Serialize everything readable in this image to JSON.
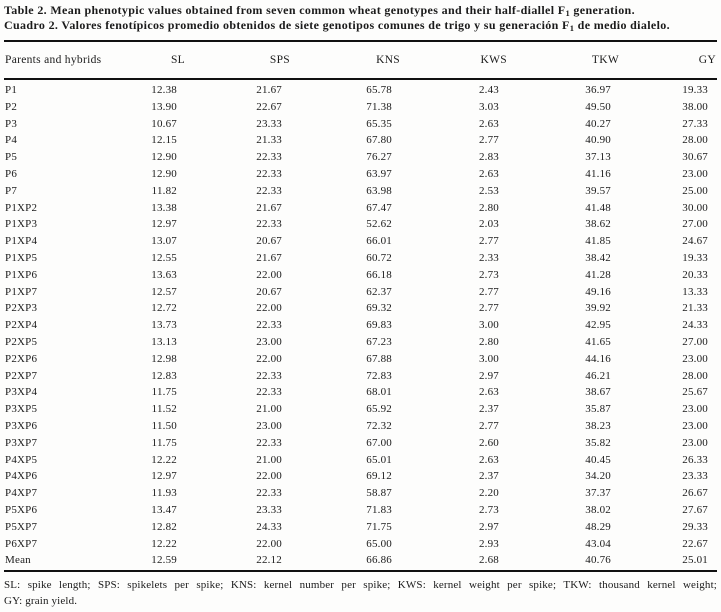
{
  "caption": {
    "en": {
      "pre": "Table 2. Mean phenotypic values obtained from seven common wheat genotypes and their half-diallel F",
      "sub": "1",
      "post": " generation."
    },
    "es": {
      "pre": "Cuadro 2. Valores fenotípicos promedio obtenidos de siete genotipos comunes de trigo y su generación F",
      "sub": "1",
      "post": " de medio dialelo."
    }
  },
  "table": {
    "headers": [
      "Parents and hybrids",
      "SL",
      "SPS",
      "KNS",
      "KWS",
      "TKW",
      "GY"
    ],
    "rows": [
      [
        "P1",
        "12.38",
        "21.67",
        "65.78",
        "2.43",
        "36.97",
        "19.33"
      ],
      [
        "P2",
        "13.90",
        "22.67",
        "71.38",
        "3.03",
        "49.50",
        "38.00"
      ],
      [
        "P3",
        "10.67",
        "23.33",
        "65.35",
        "2.63",
        "40.27",
        "27.33"
      ],
      [
        "P4",
        "12.15",
        "21.33",
        "67.80",
        "2.77",
        "40.90",
        "28.00"
      ],
      [
        "P5",
        "12.90",
        "22.33",
        "76.27",
        "2.83",
        "37.13",
        "30.67"
      ],
      [
        "P6",
        "12.90",
        "22.33",
        "63.97",
        "2.63",
        "41.16",
        "23.00"
      ],
      [
        "P7",
        "11.82",
        "22.33",
        "63.98",
        "2.53",
        "39.57",
        "25.00"
      ],
      [
        "P1XP2",
        "13.38",
        "21.67",
        "67.47",
        "2.80",
        "41.48",
        "30.00"
      ],
      [
        "P1XP3",
        "12.97",
        "22.33",
        "52.62",
        "2.03",
        "38.62",
        "27.00"
      ],
      [
        "P1XP4",
        "13.07",
        "20.67",
        "66.01",
        "2.77",
        "41.85",
        "24.67"
      ],
      [
        "P1XP5",
        "12.55",
        "21.67",
        "60.72",
        "2.33",
        "38.42",
        "19.33"
      ],
      [
        "P1XP6",
        "13.63",
        "22.00",
        "66.18",
        "2.73",
        "41.28",
        "20.33"
      ],
      [
        "P1XP7",
        "12.57",
        "20.67",
        "62.37",
        "2.77",
        "49.16",
        "13.33"
      ],
      [
        "P2XP3",
        "12.72",
        "22.00",
        "69.32",
        "2.77",
        "39.92",
        "21.33"
      ],
      [
        "P2XP4",
        "13.73",
        "22.33",
        "69.83",
        "3.00",
        "42.95",
        "24.33"
      ],
      [
        "P2XP5",
        "13.13",
        "23.00",
        "67.23",
        "2.80",
        "41.65",
        "27.00"
      ],
      [
        "P2XP6",
        "12.98",
        "22.00",
        "67.88",
        "3.00",
        "44.16",
        "23.00"
      ],
      [
        "P2XP7",
        "12.83",
        "22.33",
        "72.83",
        "2.97",
        "46.21",
        "28.00"
      ],
      [
        "P3XP4",
        "11.75",
        "22.33",
        "68.01",
        "2.63",
        "38.67",
        "25.67"
      ],
      [
        "P3XP5",
        "11.52",
        "21.00",
        "65.92",
        "2.37",
        "35.87",
        "23.00"
      ],
      [
        "P3XP6",
        "11.50",
        "23.00",
        "72.32",
        "2.77",
        "38.23",
        "23.00"
      ],
      [
        "P3XP7",
        "11.75",
        "22.33",
        "67.00",
        "2.60",
        "35.82",
        "23.00"
      ],
      [
        "P4XP5",
        "12.22",
        "21.00",
        "65.01",
        "2.63",
        "40.45",
        "26.33"
      ],
      [
        "P4XP6",
        "12.97",
        "22.00",
        "69.12",
        "2.37",
        "34.20",
        "23.33"
      ],
      [
        "P4XP7",
        "11.93",
        "22.33",
        "58.87",
        "2.20",
        "37.37",
        "26.67"
      ],
      [
        "P5XP6",
        "13.47",
        "23.33",
        "71.83",
        "2.73",
        "38.02",
        "27.67"
      ],
      [
        "P5XP7",
        "12.82",
        "24.33",
        "71.75",
        "2.97",
        "48.29",
        "29.33"
      ],
      [
        "P6XP7",
        "12.22",
        "22.00",
        "65.00",
        "2.93",
        "43.04",
        "22.67"
      ],
      [
        "Mean",
        "12.59",
        "22.12",
        "66.86",
        "2.68",
        "40.76",
        "25.01"
      ]
    ]
  },
  "footnote": {
    "line1": "SL: spike length; SPS: spikelets per spike; KNS: kernel number per spike; KWS: kernel weight per spike; TKW: thousand kernel weight;",
    "line2": "GY: grain yield."
  }
}
